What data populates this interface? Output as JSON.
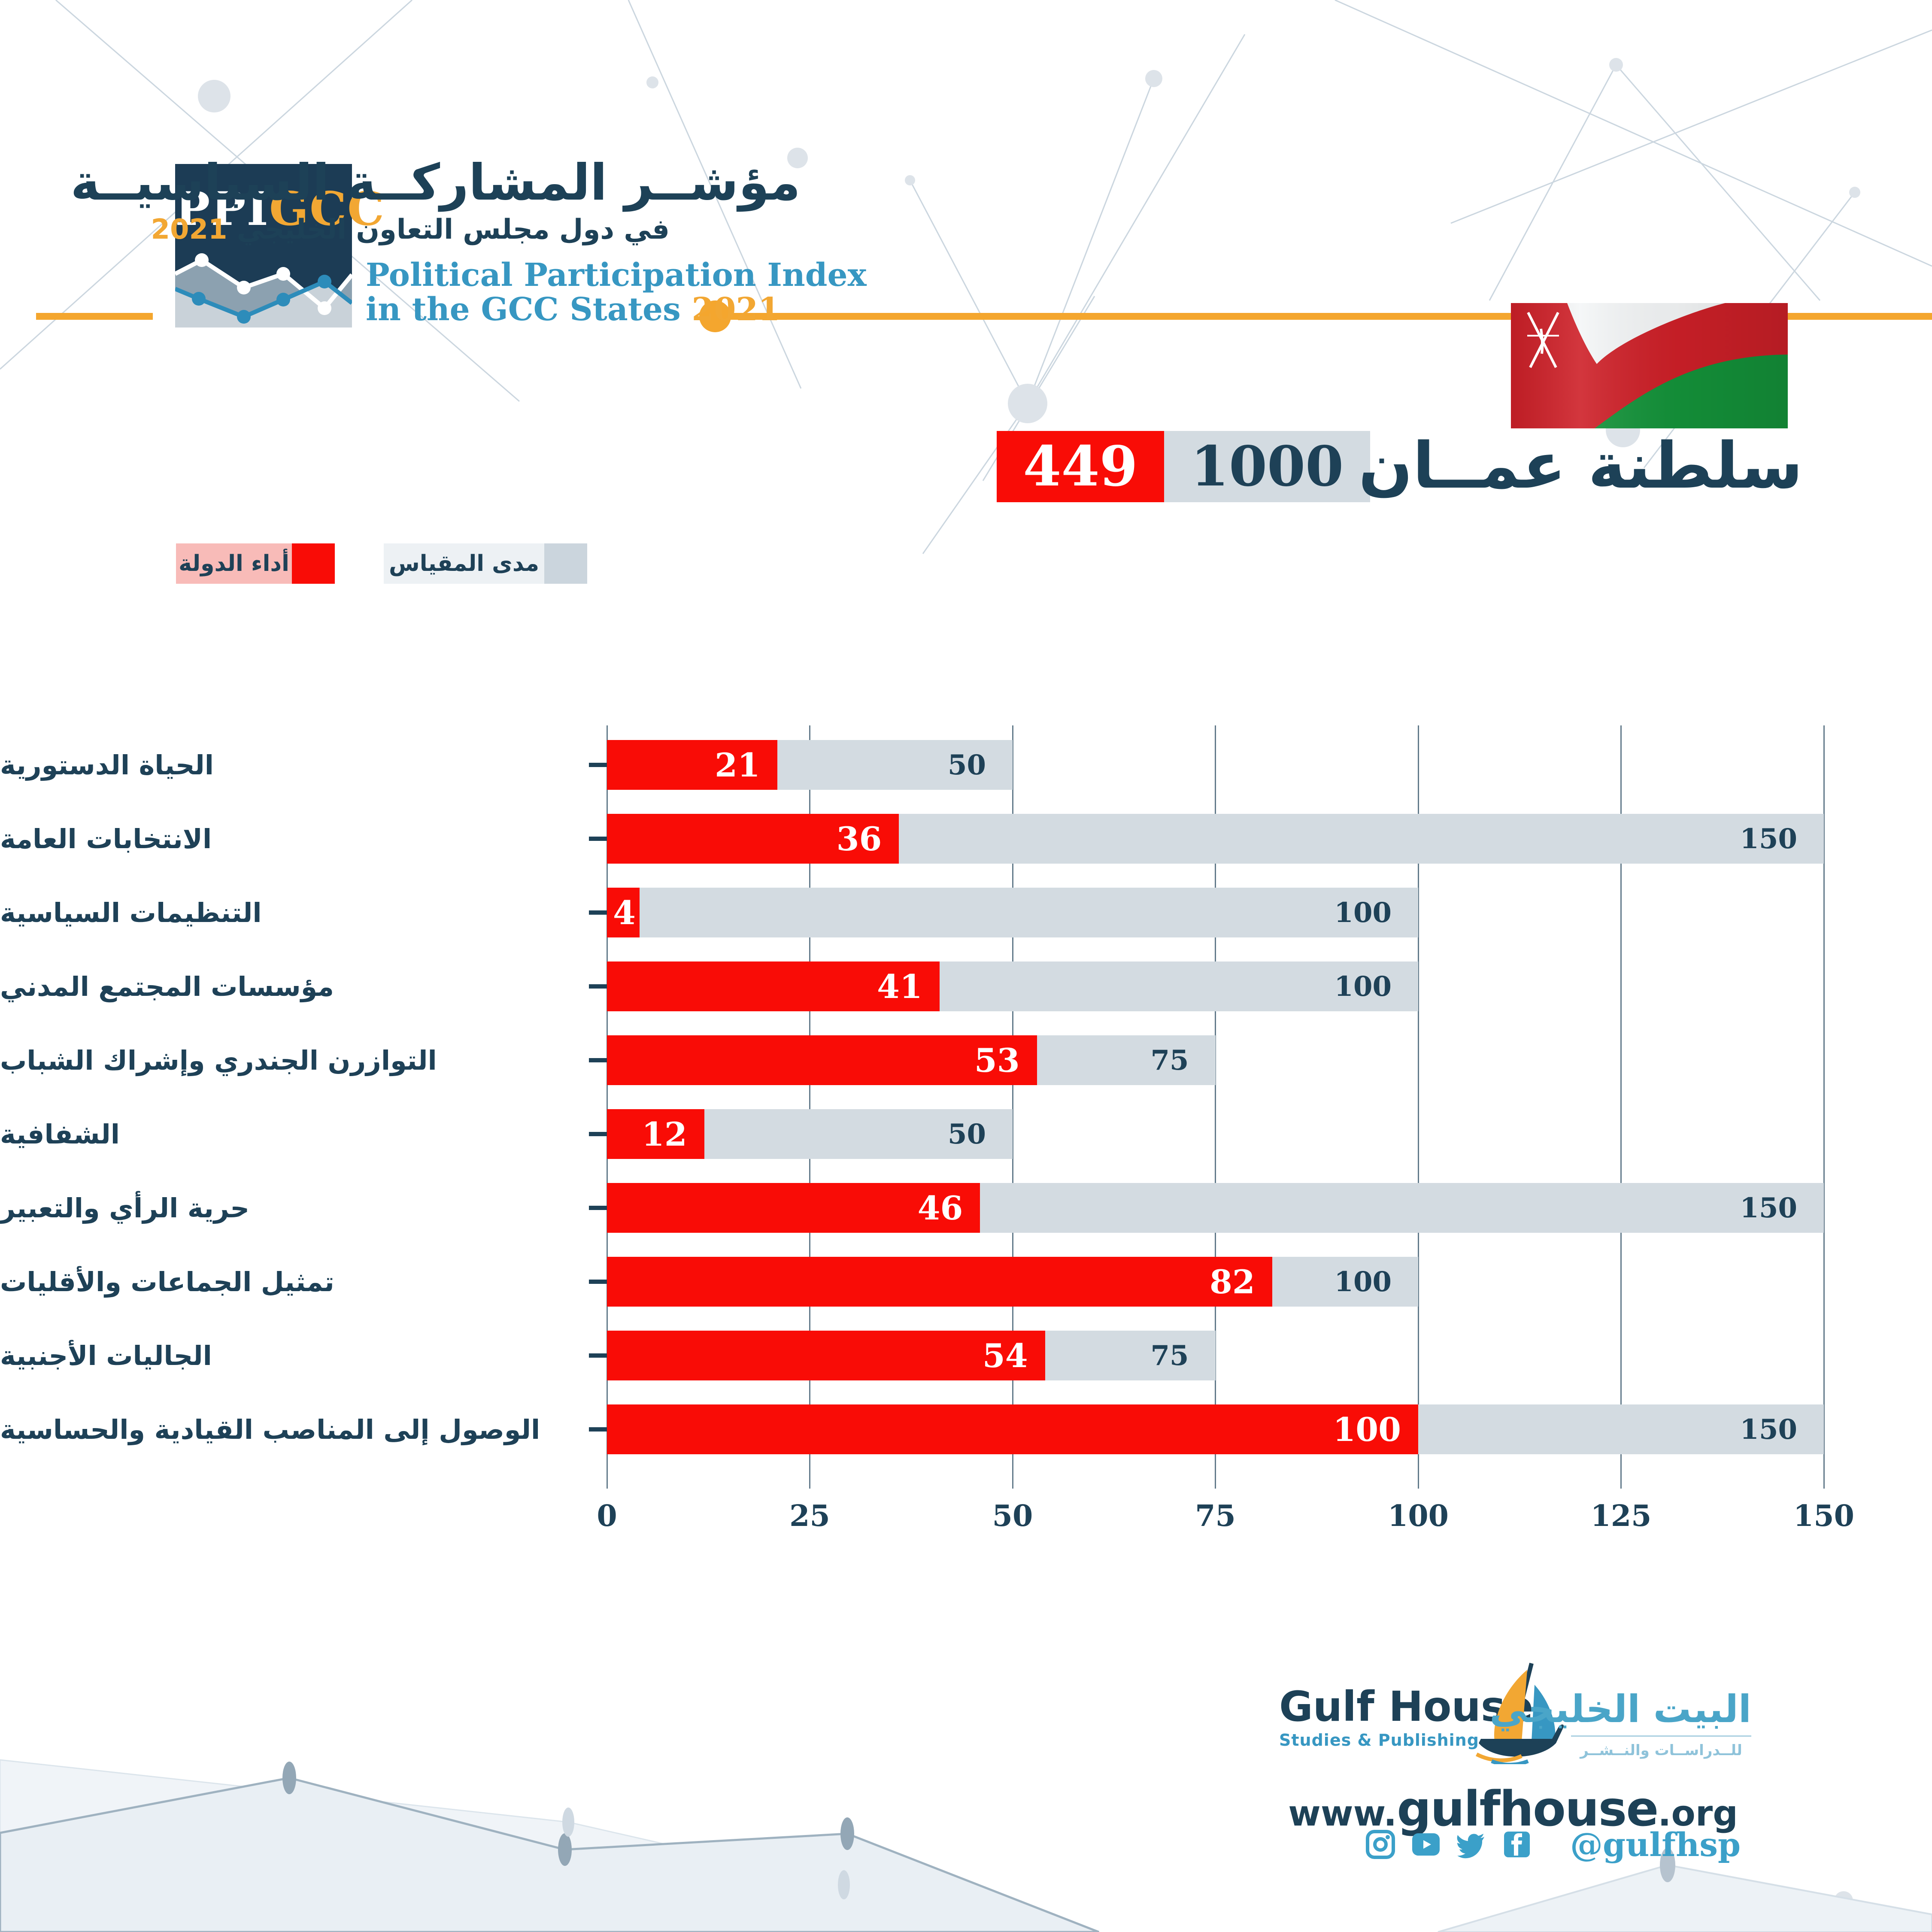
{
  "header": {
    "logo_ppi": "PPI",
    "logo_gcc": "GCC",
    "ar_title": "مؤشــر المشاركــة السياسيــة",
    "ar_subtitle": "في دول مجلس التعاون الخليجي",
    "ar_year": "2021",
    "en_title": "Political Participation Index",
    "en_subtitle": "in the GCC States",
    "en_year": "2021"
  },
  "country": {
    "name": "سلطنة عمــان",
    "scale_total": "1000",
    "score": "449"
  },
  "legend": {
    "performance": "أداء الدولة",
    "scale": "مدى المقياس"
  },
  "chart_data": {
    "type": "bar",
    "orientation": "horizontal",
    "title": "Political Participation Index in the GCC States 2021 — Sultanate of Oman",
    "categories": [
      "الحياة الدستورية",
      "الانتخابات العامة",
      "التنظيمات السياسية",
      "مؤسسات المجتمع المدني",
      "التوازرن الجندري وإشراك الشباب",
      "الشفافية",
      "حرية الرأي والتعبير",
      "تمثيل الجماعات والأقليات",
      "الجاليات الأجنبية",
      "الوصول إلى المناصب القيادية والحساسية"
    ],
    "series": [
      {
        "name": "أداء الدولة",
        "values": [
          21,
          36,
          4,
          41,
          53,
          12,
          46,
          82,
          54,
          100
        ]
      },
      {
        "name": "مدى المقياس",
        "values": [
          50,
          150,
          100,
          100,
          75,
          50,
          150,
          100,
          75,
          150
        ]
      }
    ],
    "xlim": [
      0,
      150
    ],
    "xticks": [
      0,
      25,
      50,
      75,
      100,
      125,
      150
    ],
    "grid": "vertical",
    "legend_position": "top-left",
    "colors": {
      "performance": "#F90C06",
      "scale": "#D3DBE1",
      "text": "#1E4157"
    }
  },
  "footer": {
    "org_en": "Gulf House",
    "org_tagline_en": "Studies & Publishing",
    "org_ar": "البيت الخليجي",
    "org_tagline_ar": "للــدراســات والنــشــر",
    "url_www": "www.",
    "url_name": "gulfhouse",
    "url_tld": ".org",
    "handle": "@gulfhsp",
    "social_icons": [
      "instagram-icon",
      "youtube-icon",
      "twitter-icon",
      "facebook-icon"
    ]
  },
  "colors": {
    "navy": "#1E4157",
    "red": "#F90C06",
    "bar_gray": "#D3DBE1",
    "orange": "#F4A62E",
    "blue": "#3797C2"
  }
}
